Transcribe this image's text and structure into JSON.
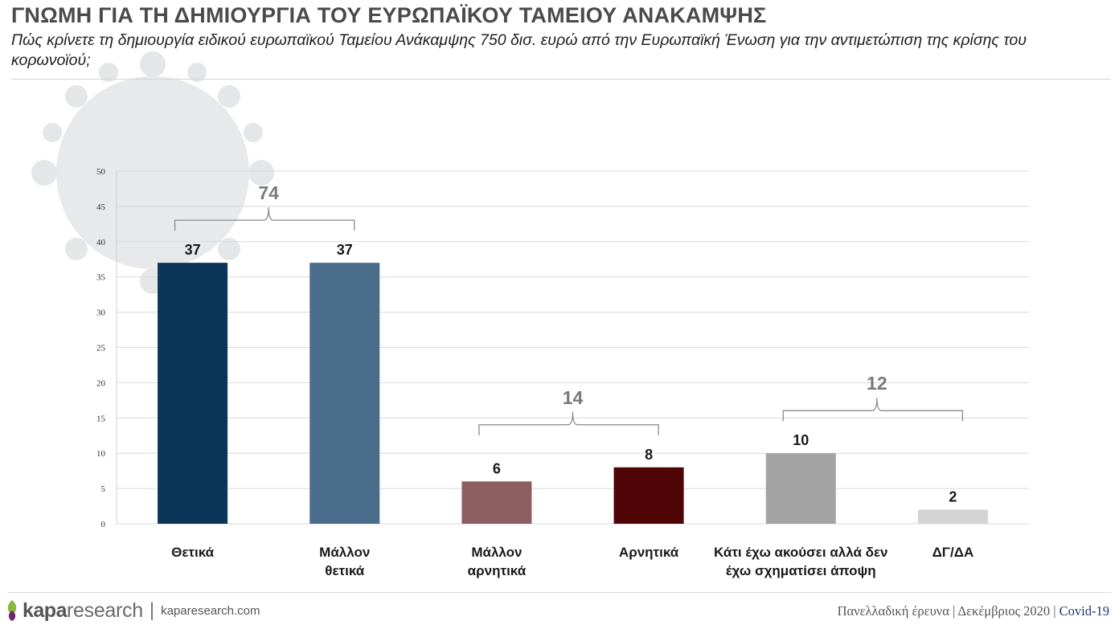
{
  "header": {
    "title": "ΓΝΩΜΗ ΓΙΑ ΤΗ ΔΗΜΙΟΥΡΓΙΑ ΤΟΥ ΕΥΡΩΠΑΪΚΟΥ ΤΑΜΕΙΟΥ ΑΝΑΚΑΜΨΗΣ",
    "subtitle": "Πώς κρίνετε τη δημιουργία ειδικού ευρωπαϊκού Ταμείου Ανάκαμψης 750 δισ. ευρώ από την Ευρωπαϊκή Ένωση για την αντιμετώπιση της κρίσης του κορωνοϊού;"
  },
  "chart_data": {
    "type": "bar",
    "categories": [
      [
        "Θετικά"
      ],
      [
        "Μάλλον",
        "θετικά"
      ],
      [
        "Μάλλον",
        "αρνητικά"
      ],
      [
        "Αρνητικά"
      ],
      [
        "Κάτι έχω ακούσει αλλά δεν",
        "έχω σχηματίσει άποψη"
      ],
      [
        "ΔΓ/ΔΑ"
      ]
    ],
    "values": [
      37,
      37,
      6,
      8,
      10,
      2
    ],
    "bar_colors": [
      "#0b3459",
      "#4b6d8c",
      "#8c5e60",
      "#4f0406",
      "#a3a3a3",
      "#d4d4d4"
    ],
    "ylim": [
      0,
      50
    ],
    "yticks": [
      "0",
      "5",
      "10",
      "15",
      "20",
      "25",
      "30",
      "35",
      "40",
      "45",
      "50"
    ],
    "grid": true,
    "groups": [
      {
        "label": "74",
        "from": 0,
        "to": 1
      },
      {
        "label": "14",
        "from": 2,
        "to": 3
      },
      {
        "label": "12",
        "from": 4,
        "to": 5
      }
    ]
  },
  "footer": {
    "brand_bold": "kapa",
    "brand_light": "research",
    "separator": "|",
    "url": "kaparesearch.com",
    "survey": "Πανελλαδική έρευνα | Δεκέμβριος 2020 | ",
    "tag": "Covid-19"
  },
  "colors": {
    "logo_green": "#8cb63c",
    "logo_purple": "#6b2a6b",
    "accent_navy": "#1f3a6e"
  }
}
